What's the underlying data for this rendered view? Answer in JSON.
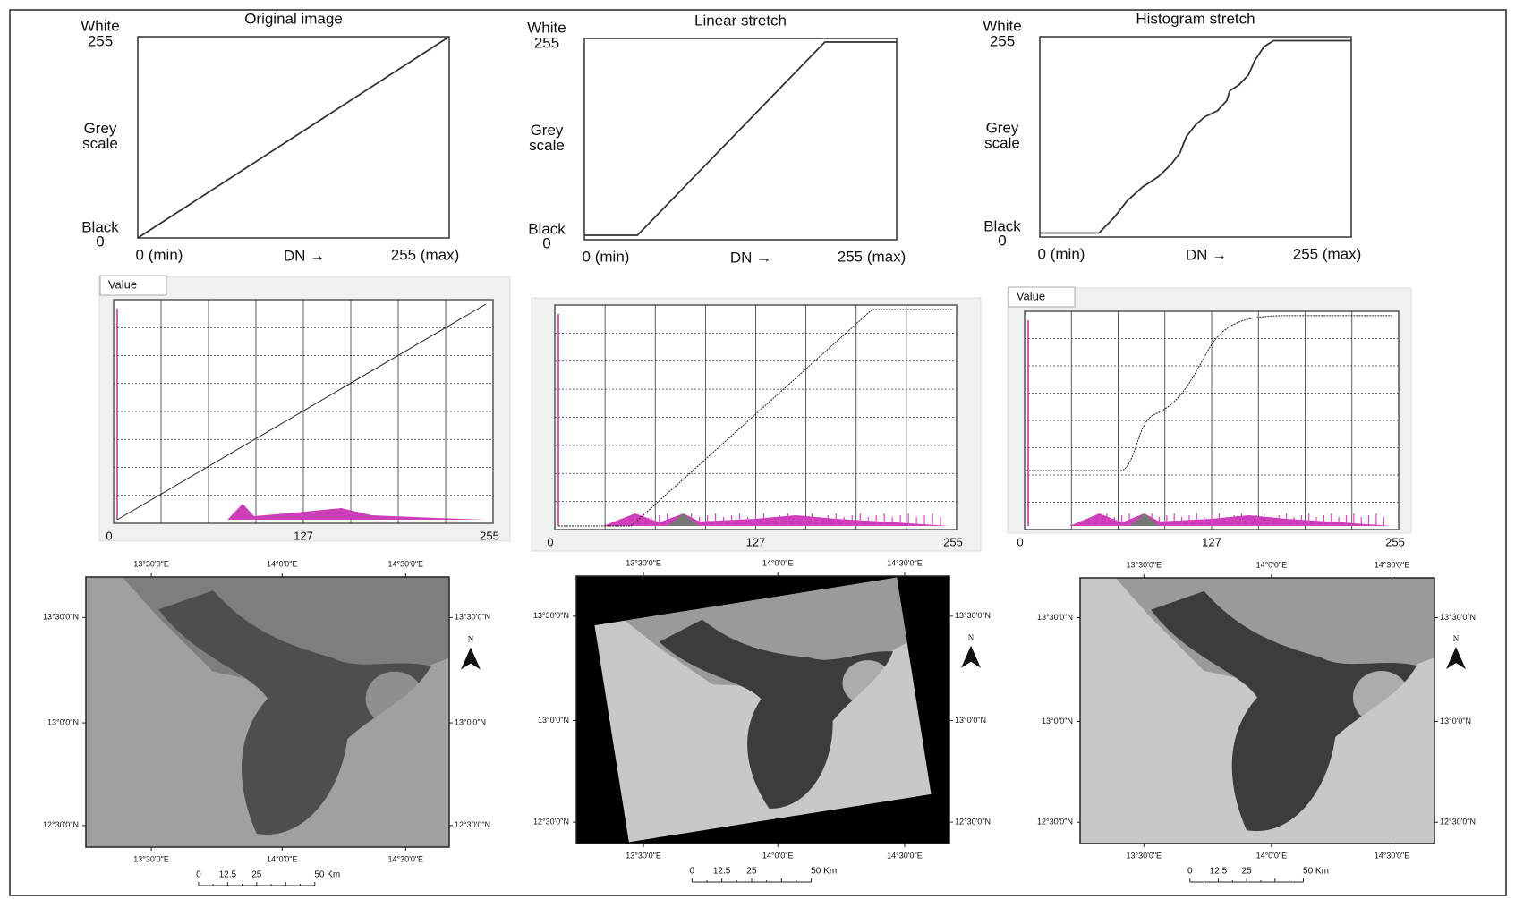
{
  "panels": [
    {
      "title": "Original image",
      "y_top": "White",
      "y_top_value": "255",
      "y_mid_1": "Grey",
      "y_mid_2": "scale",
      "y_bottom": "Black",
      "y_bottom_value": "0",
      "x_min": "0 (min)",
      "x_label": "DN →",
      "x_max": "255 (max)",
      "window_tab": "Value",
      "hist_ticks": [
        "0",
        "127",
        "255"
      ],
      "map": {
        "top_lon": [
          "13°30'0\"E",
          "14°0'0\"E",
          "14°30'0\"E"
        ],
        "bottom_lon": [
          "13°30'0\"E",
          "14°0'0\"E",
          "14°30'0\"E"
        ],
        "left_lat": [
          "13°30'0\"N",
          "13°0'0\"N",
          "12°30'0\"N"
        ],
        "right_lat": [
          "13°30'0\"N",
          "13°0'0\"N",
          "12°30'0\"N"
        ],
        "north": "N",
        "scale": [
          "0",
          "12.5",
          "25",
          "50 Km"
        ]
      }
    },
    {
      "title": "Linear stretch",
      "y_top": "White",
      "y_top_value": "255",
      "y_mid_1": "Grey",
      "y_mid_2": "scale",
      "y_bottom": "Black",
      "y_bottom_value": "0",
      "x_min": "0 (min)",
      "x_label": "DN →",
      "x_max": "255 (max)",
      "hist_ticks": [
        "0",
        "127",
        "255"
      ],
      "map": {
        "top_lon": [
          "13°30'0\"E",
          "14°0'0\"E",
          "14°30'0\"E"
        ],
        "bottom_lon": [
          "13°30'0\"E",
          "14°0'0\"E",
          "14°30'0\"E"
        ],
        "left_lat": [
          "13°30'0\"N",
          "13°0'0\"N",
          "12°30'0\"N"
        ],
        "right_lat": [
          "13°30'0\"N",
          "13°0'0\"N",
          "12°30'0\"N"
        ],
        "north": "N",
        "scale": [
          "0",
          "12.5",
          "25",
          "50 Km"
        ]
      }
    },
    {
      "title": "Histogram stretch",
      "y_top": "White",
      "y_top_value": "255",
      "y_mid_1": "Grey",
      "y_mid_2": "scale",
      "y_bottom": "Black",
      "y_bottom_value": "0",
      "x_min": "0 (min)",
      "x_label": "DN →",
      "x_max": "255 (max)",
      "window_tab": "Value",
      "hist_ticks": [
        "0",
        "127",
        "255"
      ],
      "map": {
        "top_lon": [
          "13°30'0\"E",
          "14°0'0\"E",
          "14°30'0\"E"
        ],
        "bottom_lon": [
          "13°30'0\"E",
          "14°0'0\"E",
          "14°30'0\"E"
        ],
        "left_lat": [
          "13°30'0\"N",
          "13°0'0\"N",
          "12°30'0\"N"
        ],
        "right_lat": [
          "13°30'0\"N",
          "13°0'0\"N",
          "12°30'0\"N"
        ],
        "north": "N",
        "scale": [
          "0",
          "12.5",
          "25",
          "50 Km"
        ]
      }
    }
  ]
}
